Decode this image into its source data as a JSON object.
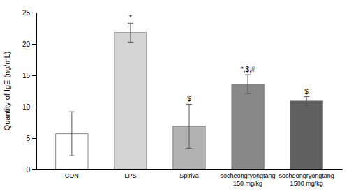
{
  "chart_data": {
    "type": "bar",
    "categories": [
      "CON",
      "LPS",
      "Spiriva",
      "socheongryongtang\n150 mg/kg",
      "socheongryongtang\n1500 mg/kg"
    ],
    "values": [
      5.7,
      21.8,
      6.9,
      13.6,
      10.9
    ],
    "errors": [
      3.5,
      1.5,
      3.5,
      1.5,
      0.7
    ],
    "colors": [
      "#ffffff",
      "#d4d4d4",
      "#b2b2b2",
      "#888888",
      "#606060"
    ],
    "annotations": [
      {
        "category": "LPS",
        "text": "*"
      },
      {
        "category": "Spiriva",
        "text": "$"
      },
      {
        "category": "socheongryongtang\n150 mg/kg",
        "text": "*,$,#"
      },
      {
        "category": "socheongryongtang\n1500 mg/kg",
        "text": "$"
      }
    ],
    "ylabel": "Quantity of IgE (ng/mL)",
    "ylim": [
      0,
      25
    ],
    "yticks": [
      0,
      5,
      10,
      15,
      20,
      25
    ],
    "grid": false
  }
}
